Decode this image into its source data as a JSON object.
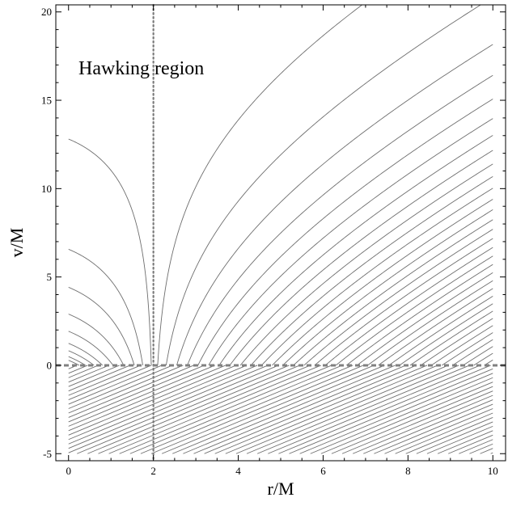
{
  "chart_data": {
    "type": "line",
    "title": "",
    "xlabel": "r/M",
    "ylabel": "v/M",
    "xlim": [
      -0.3,
      10.3
    ],
    "ylim": [
      -5.4,
      20.4
    ],
    "xticks": [
      0,
      2,
      4,
      6,
      8,
      10
    ],
    "yticks": [
      -5,
      0,
      5,
      10,
      15,
      20
    ],
    "grid": false,
    "annotation": "Hawking region",
    "reference_lines": [
      {
        "name": "horizon",
        "orientation": "vertical",
        "value": 2,
        "style": "dotted"
      },
      {
        "name": "v = 0",
        "orientation": "horizontal",
        "value": 0,
        "style": "dashed"
      }
    ],
    "families": {
      "outgoing_outside": {
        "description_values": "r0 values where curves start on v=0 (r > 2M)",
        "r0": [
          2.1,
          2.3,
          2.55,
          2.8,
          3.05,
          3.3,
          3.55,
          3.8,
          4.05,
          4.3,
          4.55,
          4.8,
          5.05,
          5.3,
          5.55,
          5.8,
          6.05,
          6.3,
          6.55,
          6.8,
          7.05,
          7.3,
          7.55,
          7.8,
          8.05,
          8.3,
          8.55,
          8.8,
          9.05,
          9.3,
          9.55,
          9.8
        ]
      },
      "outgoing_inside": {
        "description_values": "r0 values where curves start on v=0 (r < 2M)",
        "r0": [
          1.95,
          1.75,
          1.55,
          1.3,
          1.05,
          0.8,
          0.6,
          0.4,
          0.25
        ]
      },
      "ingoing_below": {
        "description_values": "diagonal lines r - v = c filling v < 0",
        "c_min": 0.2,
        "c_max": 15,
        "c_step": 0.25
      }
    },
    "line_color": "#6e6e6e"
  }
}
